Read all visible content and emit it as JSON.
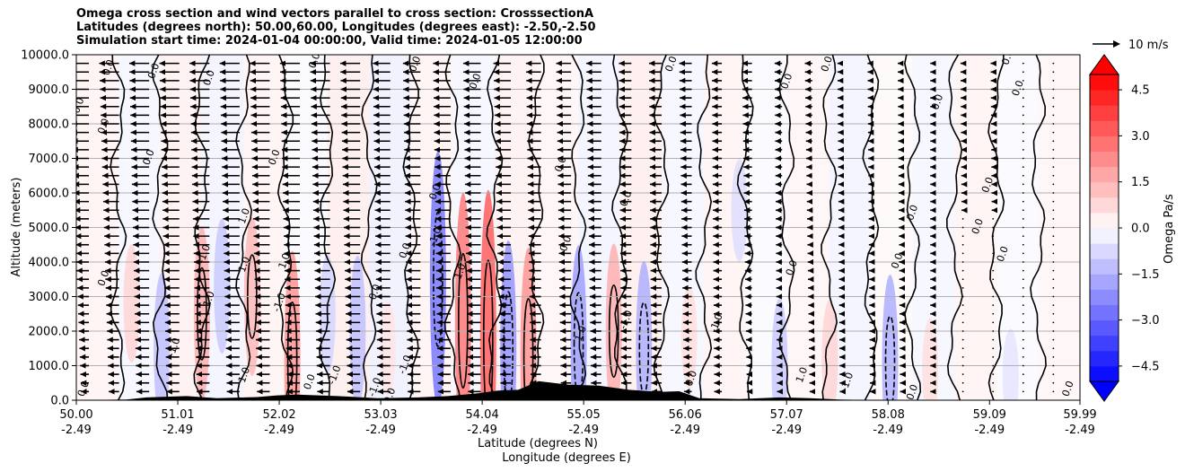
{
  "chart_data": {
    "type": "contour",
    "title_lines": [
      "Omega cross section and wind vectors parallel to cross section: CrosssectionA",
      "Latitudes (degrees north): 50.00,60.00, Longitudes (degrees east): -2.50,-2.50",
      "Simulation start time: 2024-01-04 00:00:00, Valid time: 2024-01-05 12:00:00"
    ],
    "ylabel": "Altitude (meters)",
    "xlabel_lat": "Latitude (degrees N)",
    "xlabel_lon": "Longitude (degrees E)",
    "ylim": [
      0,
      10000
    ],
    "xlim": [
      50.0,
      59.99
    ],
    "y_ticks": [
      {
        "value": 0,
        "label": "0.0"
      },
      {
        "value": 1000,
        "label": "1000.0"
      },
      {
        "value": 2000,
        "label": "2000.0"
      },
      {
        "value": 3000,
        "label": "3000.0"
      },
      {
        "value": 4000,
        "label": "4000.0"
      },
      {
        "value": 5000,
        "label": "5000.0"
      },
      {
        "value": 6000,
        "label": "6000.0"
      },
      {
        "value": 7000,
        "label": "7000.0"
      },
      {
        "value": 8000,
        "label": "8000.0"
      },
      {
        "value": 9000,
        "label": "9000.0"
      },
      {
        "value": 10000,
        "label": "10000.0"
      }
    ],
    "x_ticks": [
      {
        "value": 50.0,
        "lat": "50.00",
        "lon": "-2.49"
      },
      {
        "value": 51.01,
        "lat": "51.01",
        "lon": "-2.49"
      },
      {
        "value": 52.02,
        "lat": "52.02",
        "lon": "-2.49"
      },
      {
        "value": 53.03,
        "lat": "53.03",
        "lon": "-2.49"
      },
      {
        "value": 54.04,
        "lat": "54.04",
        "lon": "-2.49"
      },
      {
        "value": 55.05,
        "lat": "55.05",
        "lon": "-2.49"
      },
      {
        "value": 56.06,
        "lat": "56.06",
        "lon": "-2.49"
      },
      {
        "value": 57.07,
        "lat": "57.07",
        "lon": "-2.49"
      },
      {
        "value": 58.08,
        "lat": "58.08",
        "lon": "-2.49"
      },
      {
        "value": 59.09,
        "lat": "59.09",
        "lon": "-2.49"
      },
      {
        "value": 59.99,
        "lat": "59.99",
        "lon": "-2.49"
      }
    ],
    "colorbar": {
      "label": "Omega Pa/s",
      "range": [
        -5.0,
        5.0
      ],
      "extend": "both",
      "tick_values": [
        4.5,
        3.0,
        1.5,
        0.0,
        -1.5,
        -3.0,
        -4.5
      ],
      "tick_labels": [
        "4.5",
        "3.0",
        "1.5",
        "0.0",
        "−1.5",
        "−3.0",
        "−4.5"
      ],
      "positive_color": "#ff0000",
      "negative_color": "#0000ff"
    },
    "quiver_key": {
      "label": "10 m/s",
      "speed": 10
    },
    "wind_field": {
      "levels": [
        250,
        500,
        750,
        1000,
        1250,
        1500,
        1750,
        2000,
        2250,
        2500,
        2750,
        3000,
        3250,
        3500,
        3750,
        4000,
        4250,
        4500,
        4750,
        5000,
        5250,
        5500,
        5750,
        6000,
        6250,
        6500,
        6750,
        7000,
        7250,
        7500,
        7750,
        8000,
        8250,
        8500,
        8750,
        9000,
        9250,
        9500,
        9750
      ],
      "columns_lat": [
        50.0,
        50.3,
        50.6,
        50.9,
        51.2,
        51.5,
        51.8,
        52.1,
        52.4,
        52.7,
        53.0,
        53.3,
        53.6,
        53.9,
        54.2,
        54.5,
        54.8,
        55.1,
        55.4,
        55.7,
        56.0,
        56.3,
        56.6,
        56.9,
        57.2,
        57.5,
        57.8,
        58.1,
        58.4,
        58.7,
        59.0,
        59.3,
        59.6,
        59.9
      ],
      "u_surface_ms": [
        -3,
        -4,
        -5,
        -5,
        -5,
        -5,
        -5,
        -5,
        -5,
        -5,
        -5,
        -5,
        -5,
        -5,
        -4,
        -4,
        -4,
        -4,
        -4,
        -4,
        -3,
        -3,
        -2,
        -2,
        -1,
        -1,
        -1,
        -1,
        -1,
        0,
        0,
        0,
        0,
        0
      ],
      "u_top_ms": [
        -8,
        -8,
        -8,
        -8,
        -8,
        -8,
        -8,
        -8,
        -8,
        -8,
        -7,
        -7,
        -7,
        -7,
        -7,
        -6,
        -6,
        -6,
        -5,
        -5,
        -5,
        -4,
        -4,
        -3,
        -3,
        -2,
        -2,
        -2,
        -1,
        -1,
        -1,
        0,
        0,
        0
      ]
    },
    "omega_anomalies": [
      {
        "lat": 50.55,
        "z": 2800,
        "value": 0.8
      },
      {
        "lat": 50.85,
        "z": 1500,
        "value": -1.2
      },
      {
        "lat": 51.25,
        "z": 2500,
        "value": 1.5
      },
      {
        "lat": 51.45,
        "z": 3300,
        "value": -1.0
      },
      {
        "lat": 51.75,
        "z": 3000,
        "value": 1.3
      },
      {
        "lat": 52.15,
        "z": 1200,
        "value": 2.0
      },
      {
        "lat": 52.5,
        "z": 2500,
        "value": -0.8
      },
      {
        "lat": 52.8,
        "z": 2000,
        "value": -1.2
      },
      {
        "lat": 53.1,
        "z": 1500,
        "value": 0.5
      },
      {
        "lat": 53.6,
        "z": 3500,
        "value": -2.5
      },
      {
        "lat": 53.85,
        "z": 2300,
        "value": 2.5
      },
      {
        "lat": 54.1,
        "z": 1800,
        "value": 3.0
      },
      {
        "lat": 54.3,
        "z": 1500,
        "value": -2.0
      },
      {
        "lat": 54.5,
        "z": 1300,
        "value": 2.0
      },
      {
        "lat": 55.0,
        "z": 1600,
        "value": -1.8
      },
      {
        "lat": 55.35,
        "z": 2000,
        "value": 1.5
      },
      {
        "lat": 55.65,
        "z": 1500,
        "value": -1.5
      },
      {
        "lat": 56.1,
        "z": 1800,
        "value": 0.6
      },
      {
        "lat": 56.6,
        "z": 5500,
        "value": -0.6
      },
      {
        "lat": 57.0,
        "z": 1000,
        "value": -1.0
      },
      {
        "lat": 57.5,
        "z": 1200,
        "value": 0.8
      },
      {
        "lat": 58.1,
        "z": 1100,
        "value": -1.5
      },
      {
        "lat": 58.5,
        "z": 900,
        "value": 0.6
      },
      {
        "lat": 59.3,
        "z": 700,
        "value": -0.5
      }
    ],
    "terrain_m": [
      {
        "lat": 50.0,
        "z": 0
      },
      {
        "lat": 50.5,
        "z": 20
      },
      {
        "lat": 50.7,
        "z": 80
      },
      {
        "lat": 51.1,
        "z": 120
      },
      {
        "lat": 51.4,
        "z": 60
      },
      {
        "lat": 51.8,
        "z": 90
      },
      {
        "lat": 52.0,
        "z": 140
      },
      {
        "lat": 52.2,
        "z": 160
      },
      {
        "lat": 52.6,
        "z": 120
      },
      {
        "lat": 53.0,
        "z": 60
      },
      {
        "lat": 53.4,
        "z": 80
      },
      {
        "lat": 53.7,
        "z": 120
      },
      {
        "lat": 54.0,
        "z": 200
      },
      {
        "lat": 54.2,
        "z": 280
      },
      {
        "lat": 54.4,
        "z": 300
      },
      {
        "lat": 54.6,
        "z": 550
      },
      {
        "lat": 54.9,
        "z": 450
      },
      {
        "lat": 55.2,
        "z": 420
      },
      {
        "lat": 55.5,
        "z": 300
      },
      {
        "lat": 55.8,
        "z": 240
      },
      {
        "lat": 56.0,
        "z": 260
      },
      {
        "lat": 56.2,
        "z": 60
      },
      {
        "lat": 56.6,
        "z": 30
      },
      {
        "lat": 57.0,
        "z": 80
      },
      {
        "lat": 57.3,
        "z": 60
      },
      {
        "lat": 57.6,
        "z": 20
      },
      {
        "lat": 58.0,
        "z": 0
      },
      {
        "lat": 59.99,
        "z": 0
      }
    ],
    "contour_labels": [
      {
        "text": "0.0",
        "lat": 50.35,
        "z": 9600
      },
      {
        "text": "0.0",
        "lat": 50.8,
        "z": 9500
      },
      {
        "text": "0.0",
        "lat": 51.35,
        "z": 9300
      },
      {
        "text": "0.0",
        "lat": 52.4,
        "z": 9800
      },
      {
        "text": "0.0",
        "lat": 53.4,
        "z": 9700
      },
      {
        "text": "0.0",
        "lat": 54.0,
        "z": 9200
      },
      {
        "text": "0.0",
        "lat": 55.95,
        "z": 9700
      },
      {
        "text": "0.0",
        "lat": 57.5,
        "z": 9700
      },
      {
        "text": "0.0",
        "lat": 59.3,
        "z": 9900
      },
      {
        "text": "0.0",
        "lat": 50.05,
        "z": 8500
      },
      {
        "text": "0.0",
        "lat": 50.3,
        "z": 7900
      },
      {
        "text": "0.0",
        "lat": 50.75,
        "z": 7000
      },
      {
        "text": "0.0",
        "lat": 52.0,
        "z": 7000
      },
      {
        "text": "0.0",
        "lat": 53.6,
        "z": 6000
      },
      {
        "text": "0.0",
        "lat": 54.85,
        "z": 6800
      },
      {
        "text": "0.0",
        "lat": 55.5,
        "z": 5800
      },
      {
        "text": "0.0",
        "lat": 57.1,
        "z": 9200
      },
      {
        "text": "0.0",
        "lat": 58.6,
        "z": 8600
      },
      {
        "text": "0.0",
        "lat": 59.4,
        "z": 9000
      },
      {
        "text": "0.0",
        "lat": 59.1,
        "z": 6200
      },
      {
        "text": "0.0",
        "lat": 59.0,
        "z": 5000
      },
      {
        "text": "0.0",
        "lat": 58.35,
        "z": 5400
      },
      {
        "text": "0.0",
        "lat": 57.15,
        "z": 3800
      },
      {
        "text": "0.0",
        "lat": 58.2,
        "z": 4000
      },
      {
        "text": "0.0",
        "lat": 59.25,
        "z": 4200
      },
      {
        "text": "0.0",
        "lat": 50.3,
        "z": 3500
      },
      {
        "text": "0.0",
        "lat": 53.0,
        "z": 3100
      },
      {
        "text": "0.0",
        "lat": 53.3,
        "z": 4300
      },
      {
        "text": "0.0",
        "lat": 54.9,
        "z": 4500
      },
      {
        "text": "1.0",
        "lat": 51.7,
        "z": 5300
      },
      {
        "text": "1.0",
        "lat": 51.7,
        "z": 3900
      },
      {
        "text": "1.0",
        "lat": 52.1,
        "z": 4000
      },
      {
        "text": "-1.0",
        "lat": 51.3,
        "z": 4200
      },
      {
        "text": "-1.0",
        "lat": 53.6,
        "z": 4700
      },
      {
        "text": "1.0",
        "lat": 53.85,
        "z": 3700
      },
      {
        "text": "-1.0",
        "lat": 52.05,
        "z": 2800
      },
      {
        "text": "1.0",
        "lat": 51.35,
        "z": 2900
      },
      {
        "text": "-1.0",
        "lat": 53.3,
        "z": 1000
      },
      {
        "text": "-1.0",
        "lat": 53.0,
        "z": 350
      },
      {
        "text": "-1.0",
        "lat": 55.5,
        "z": 2300
      },
      {
        "text": "-1.0",
        "lat": 56.4,
        "z": 2200
      },
      {
        "text": "1.0",
        "lat": 55.05,
        "z": 1900
      },
      {
        "text": "0.0",
        "lat": 56.15,
        "z": 600
      },
      {
        "text": "0.0",
        "lat": 58.35,
        "z": 200
      },
      {
        "text": "0.0",
        "lat": 59.9,
        "z": 300
      },
      {
        "text": "-1.0",
        "lat": 57.7,
        "z": 500
      },
      {
        "text": "1.0",
        "lat": 57.25,
        "z": 700
      },
      {
        "text": "-1.0",
        "lat": 51.0,
        "z": 1500
      },
      {
        "text": "1.0",
        "lat": 51.7,
        "z": 700
      },
      {
        "text": "0.0",
        "lat": 52.35,
        "z": 500
      },
      {
        "text": "-1.0",
        "lat": 52.6,
        "z": 700
      },
      {
        "text": "0.0",
        "lat": 50.1,
        "z": 300
      },
      {
        "text": "0.0",
        "lat": 53.15,
        "z": 100
      }
    ]
  }
}
